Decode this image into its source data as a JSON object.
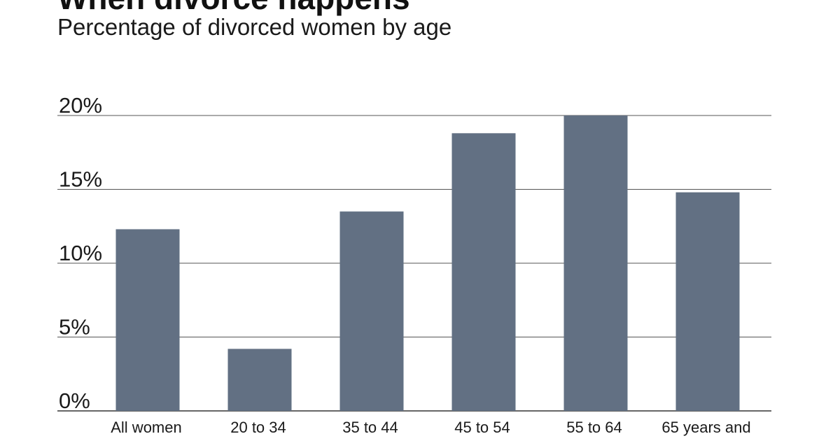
{
  "header": {
    "title": "When divorce happens",
    "subtitle": "Percentage of divorced women by age"
  },
  "colors": {
    "bar": "#627083",
    "gridline": "#555555",
    "text": "#1a1a1a"
  },
  "chart_data": {
    "type": "bar",
    "title": "When divorce happens",
    "subtitle": "Percentage of divorced women by age",
    "categories": [
      "All women",
      "20 to 34",
      "35 to 44",
      "45 to 54",
      "55 to 64",
      "65 years and"
    ],
    "values": [
      12.3,
      4.2,
      13.5,
      18.8,
      20.0,
      14.8
    ],
    "yticks": [
      "0%",
      "5%",
      "10%",
      "15%",
      "20%"
    ],
    "ylim": [
      0,
      20
    ],
    "grid": true,
    "legend": "none"
  }
}
